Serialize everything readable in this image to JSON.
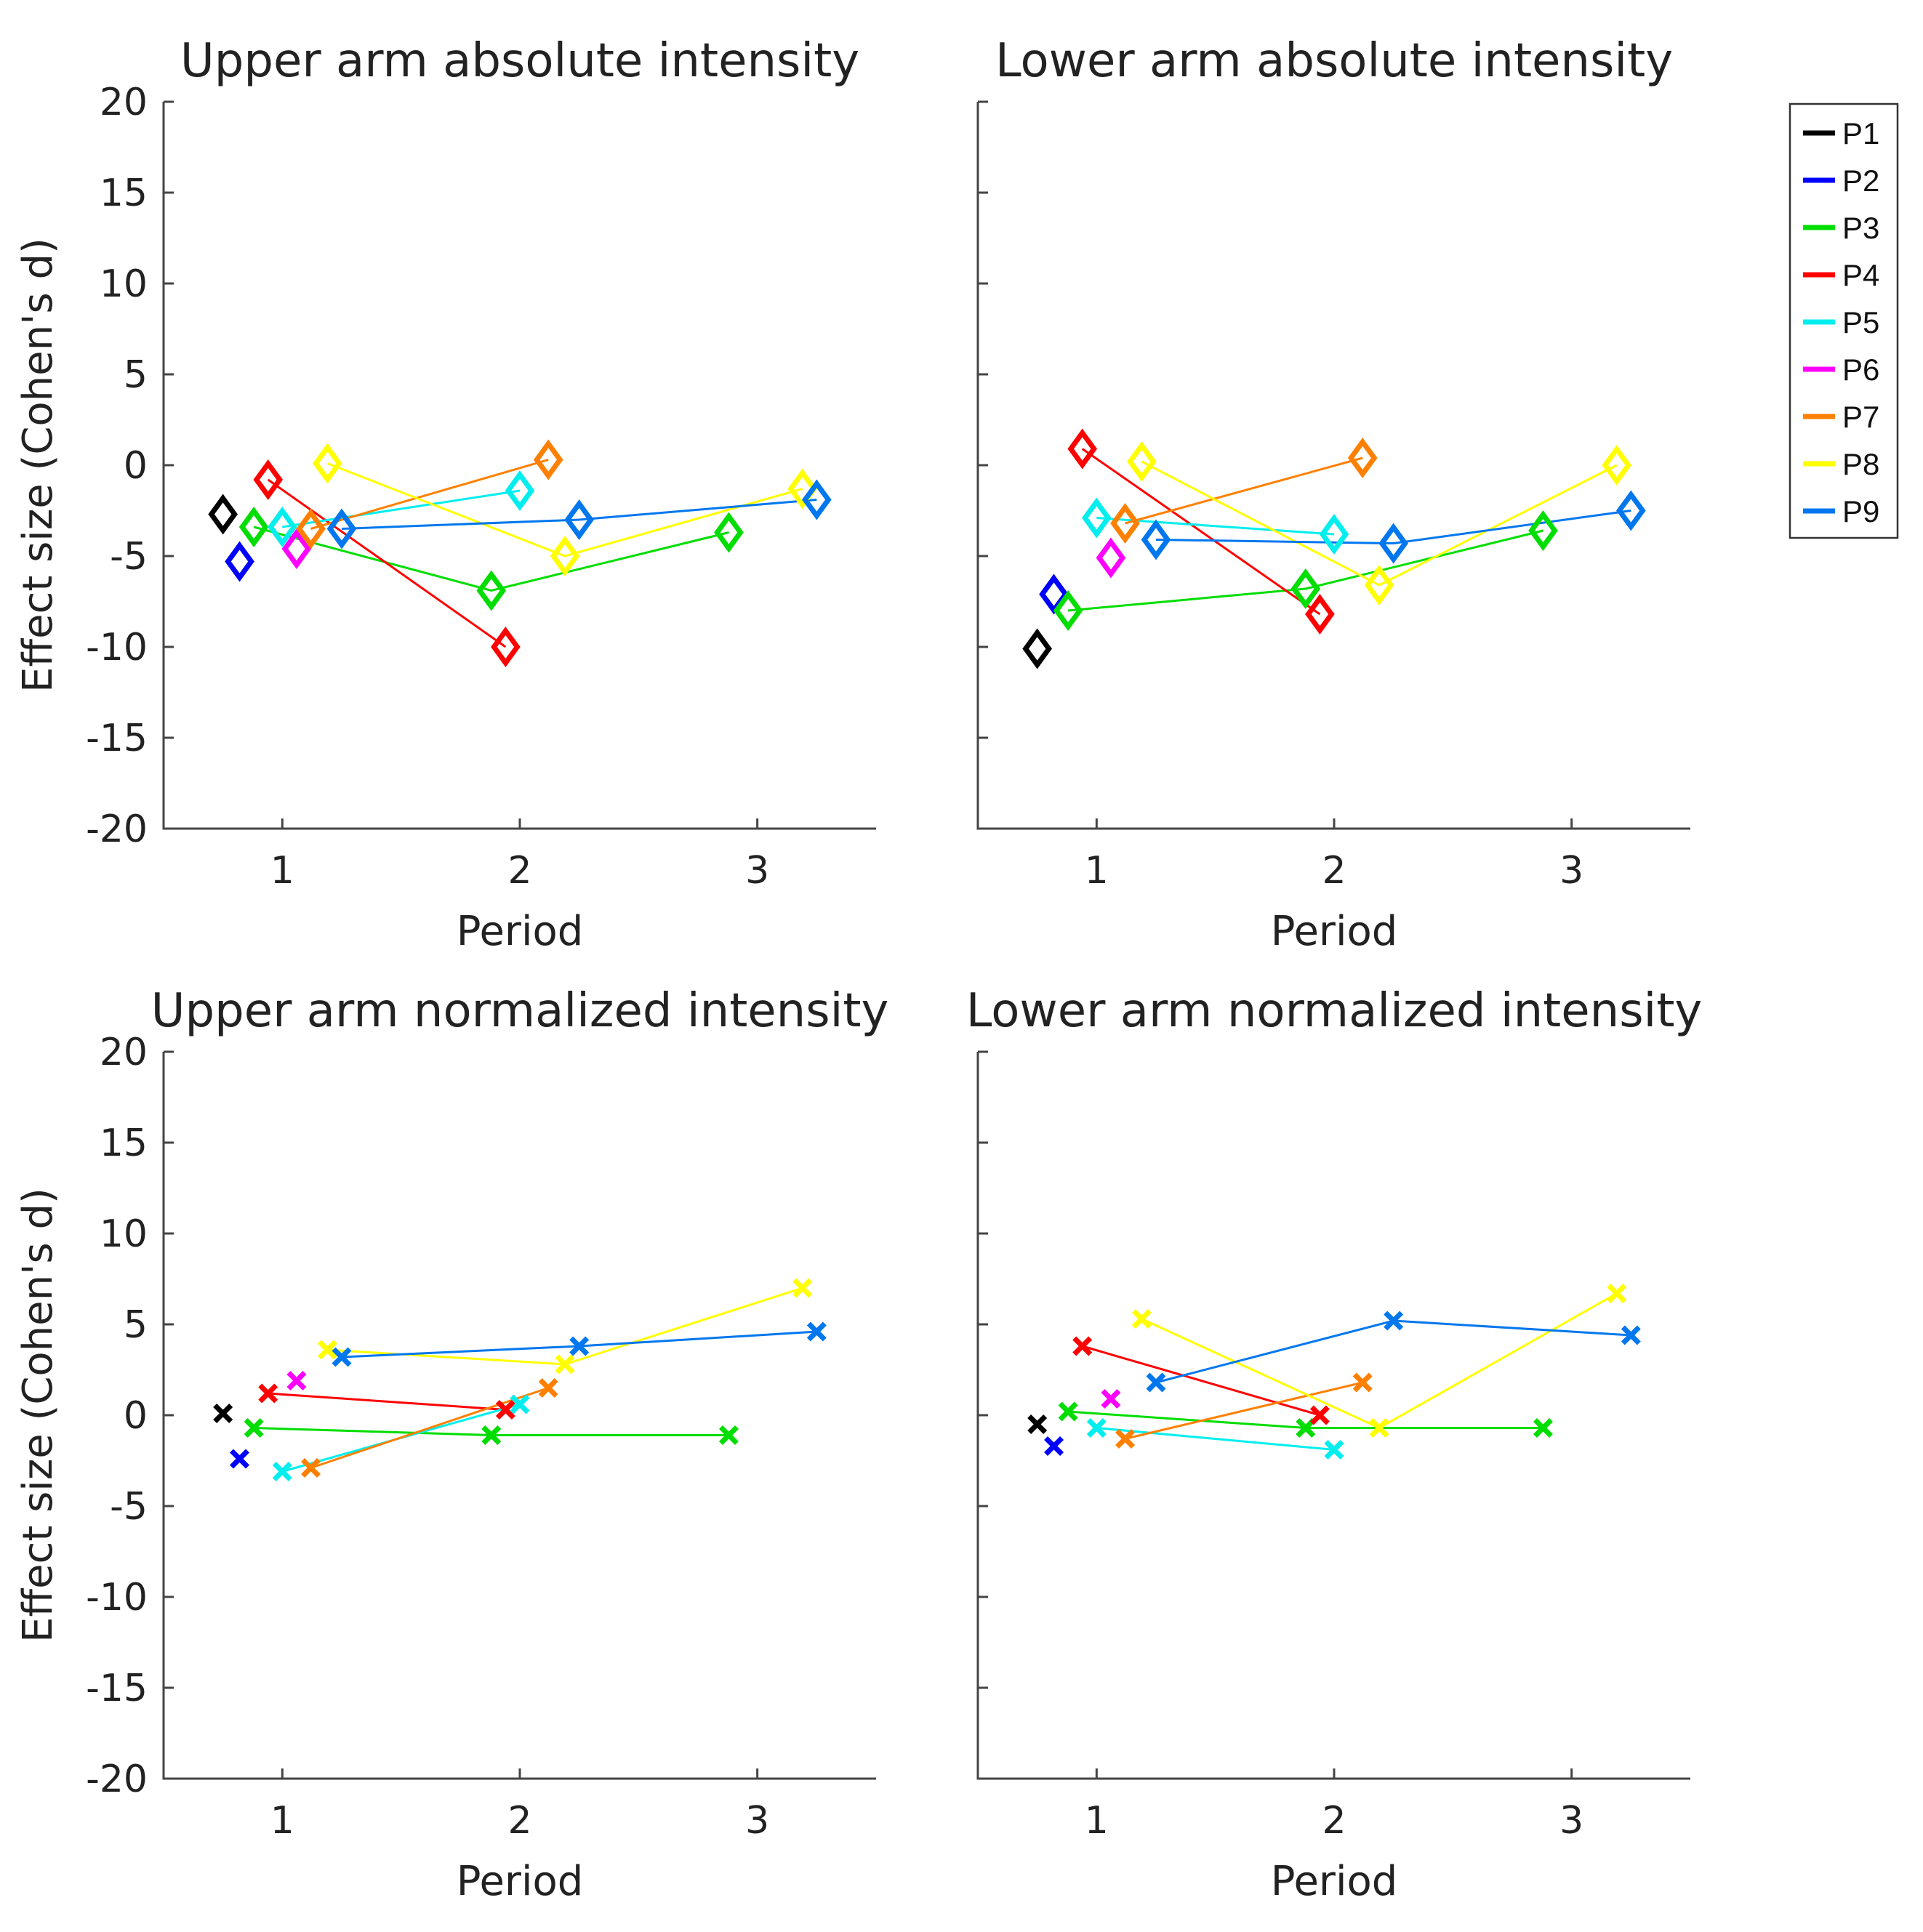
{
  "chart_data": {
    "type": "scatter",
    "legend": {
      "placement": "right",
      "entries": [
        {
          "name": "P1",
          "color": "#000000"
        },
        {
          "name": "P2",
          "color": "#0000ff"
        },
        {
          "name": "P3",
          "color": "#00dd00"
        },
        {
          "name": "P4",
          "color": "#ff0000"
        },
        {
          "name": "P5",
          "color": "#00eeee"
        },
        {
          "name": "P6",
          "color": "#ff00ff"
        },
        {
          "name": "P7",
          "color": "#ff8000"
        },
        {
          "name": "P8",
          "color": "#ffff00"
        },
        {
          "name": "P9",
          "color": "#0077ee"
        }
      ]
    },
    "panels": [
      {
        "title": "Upper arm absolute intensity",
        "xlabel": "Period",
        "ylabel": "Effect size (Cohen's d)",
        "show_ylabel": true,
        "show_yticklabels": true,
        "xlim": [
          0.5,
          3.5
        ],
        "ylim": [
          -20,
          20
        ],
        "xticks": [
          1,
          2,
          3
        ],
        "yticks": [
          -20,
          -15,
          -10,
          -5,
          0,
          5,
          10,
          15,
          20
        ],
        "marker": "diamond",
        "series": [
          {
            "name": "P1",
            "points": [
              [
                0.75,
                -2.7
              ]
            ]
          },
          {
            "name": "P2",
            "points": [
              [
                0.82,
                -5.3
              ]
            ]
          },
          {
            "name": "P3",
            "points": [
              [
                0.88,
                -3.4
              ],
              [
                1.88,
                -6.9
              ],
              [
                2.88,
                -3.7
              ]
            ]
          },
          {
            "name": "P4",
            "points": [
              [
                0.94,
                -0.8
              ],
              [
                1.94,
                -10.0
              ]
            ]
          },
          {
            "name": "P5",
            "points": [
              [
                1.0,
                -3.4
              ],
              [
                2.0,
                -1.4
              ]
            ]
          },
          {
            "name": "P6",
            "points": [
              [
                1.06,
                -4.6
              ]
            ]
          },
          {
            "name": "P7",
            "points": [
              [
                1.12,
                -3.5
              ],
              [
                2.12,
                0.3
              ]
            ]
          },
          {
            "name": "P8",
            "points": [
              [
                1.19,
                0.1
              ],
              [
                2.19,
                -5.0
              ],
              [
                3.19,
                -1.3
              ]
            ]
          },
          {
            "name": "P9",
            "points": [
              [
                1.25,
                -3.5
              ],
              [
                2.25,
                -3.0
              ],
              [
                3.25,
                -1.9
              ]
            ]
          }
        ]
      },
      {
        "title": "Lower arm absolute intensity",
        "xlabel": "Period",
        "ylabel": "",
        "show_ylabel": false,
        "show_yticklabels": false,
        "xlim": [
          0.5,
          3.5
        ],
        "ylim": [
          -20,
          20
        ],
        "xticks": [
          1,
          2,
          3
        ],
        "yticks": [
          -20,
          -15,
          -10,
          -5,
          0,
          5,
          10,
          15,
          20
        ],
        "marker": "diamond",
        "series": [
          {
            "name": "P1",
            "points": [
              [
                0.75,
                -10.1
              ]
            ]
          },
          {
            "name": "P2",
            "points": [
              [
                0.82,
                -7.1
              ]
            ]
          },
          {
            "name": "P3",
            "points": [
              [
                0.88,
                -8.0
              ],
              [
                1.88,
                -6.8
              ],
              [
                2.88,
                -3.6
              ]
            ]
          },
          {
            "name": "P4",
            "points": [
              [
                0.94,
                0.9
              ],
              [
                1.94,
                -8.2
              ]
            ]
          },
          {
            "name": "P5",
            "points": [
              [
                1.0,
                -2.9
              ],
              [
                2.0,
                -3.8
              ]
            ]
          },
          {
            "name": "P6",
            "points": [
              [
                1.06,
                -5.1
              ]
            ]
          },
          {
            "name": "P7",
            "points": [
              [
                1.12,
                -3.2
              ],
              [
                2.12,
                0.4
              ]
            ]
          },
          {
            "name": "P8",
            "points": [
              [
                1.19,
                0.2
              ],
              [
                2.19,
                -6.6
              ],
              [
                3.19,
                0.0
              ]
            ]
          },
          {
            "name": "P9",
            "points": [
              [
                1.25,
                -4.1
              ],
              [
                2.25,
                -4.3
              ],
              [
                3.25,
                -2.5
              ]
            ]
          }
        ]
      },
      {
        "title": "Upper arm normalized intensity",
        "xlabel": "Period",
        "ylabel": "Effect size (Cohen's d)",
        "show_ylabel": true,
        "show_yticklabels": true,
        "xlim": [
          0.5,
          3.5
        ],
        "ylim": [
          -20,
          20
        ],
        "xticks": [
          1,
          2,
          3
        ],
        "yticks": [
          -20,
          -15,
          -10,
          -5,
          0,
          5,
          10,
          15,
          20
        ],
        "marker": "x",
        "series": [
          {
            "name": "P1",
            "points": [
              [
                0.75,
                0.1
              ]
            ]
          },
          {
            "name": "P2",
            "points": [
              [
                0.82,
                -2.4
              ]
            ]
          },
          {
            "name": "P3",
            "points": [
              [
                0.88,
                -0.7
              ],
              [
                1.88,
                -1.1
              ],
              [
                2.88,
                -1.1
              ]
            ]
          },
          {
            "name": "P4",
            "points": [
              [
                0.94,
                1.2
              ],
              [
                1.94,
                0.3
              ]
            ]
          },
          {
            "name": "P5",
            "points": [
              [
                1.0,
                -3.1
              ],
              [
                2.0,
                0.6
              ]
            ]
          },
          {
            "name": "P6",
            "points": [
              [
                1.06,
                1.9
              ]
            ]
          },
          {
            "name": "P7",
            "points": [
              [
                1.12,
                -2.9
              ],
              [
                2.12,
                1.5
              ]
            ]
          },
          {
            "name": "P8",
            "points": [
              [
                1.19,
                3.6
              ],
              [
                2.19,
                2.8
              ],
              [
                3.19,
                7.0
              ]
            ]
          },
          {
            "name": "P9",
            "points": [
              [
                1.25,
                3.2
              ],
              [
                2.25,
                3.8
              ],
              [
                3.25,
                4.6
              ]
            ]
          }
        ]
      },
      {
        "title": "Lower arm normalized intensity",
        "xlabel": "Period",
        "ylabel": "",
        "show_ylabel": false,
        "show_yticklabels": false,
        "xlim": [
          0.5,
          3.5
        ],
        "ylim": [
          -20,
          20
        ],
        "xticks": [
          1,
          2,
          3
        ],
        "yticks": [
          -20,
          -15,
          -10,
          -5,
          0,
          5,
          10,
          15,
          20
        ],
        "marker": "x",
        "series": [
          {
            "name": "P1",
            "points": [
              [
                0.75,
                -0.5
              ]
            ]
          },
          {
            "name": "P2",
            "points": [
              [
                0.82,
                -1.7
              ]
            ]
          },
          {
            "name": "P3",
            "points": [
              [
                0.88,
                0.2
              ],
              [
                1.88,
                -0.7
              ],
              [
                2.88,
                -0.7
              ]
            ]
          },
          {
            "name": "P4",
            "points": [
              [
                0.94,
                3.8
              ],
              [
                1.94,
                0.0
              ]
            ]
          },
          {
            "name": "P5",
            "points": [
              [
                1.0,
                -0.7
              ],
              [
                2.0,
                -1.9
              ]
            ]
          },
          {
            "name": "P6",
            "points": [
              [
                1.06,
                0.9
              ]
            ]
          },
          {
            "name": "P7",
            "points": [
              [
                1.12,
                -1.3
              ],
              [
                2.12,
                1.8
              ]
            ]
          },
          {
            "name": "P8",
            "points": [
              [
                1.19,
                5.3
              ],
              [
                2.19,
                -0.7
              ],
              [
                3.19,
                6.7
              ]
            ]
          },
          {
            "name": "P9",
            "points": [
              [
                1.25,
                1.8
              ],
              [
                2.25,
                5.2
              ],
              [
                3.25,
                4.4
              ]
            ]
          }
        ]
      }
    ]
  }
}
